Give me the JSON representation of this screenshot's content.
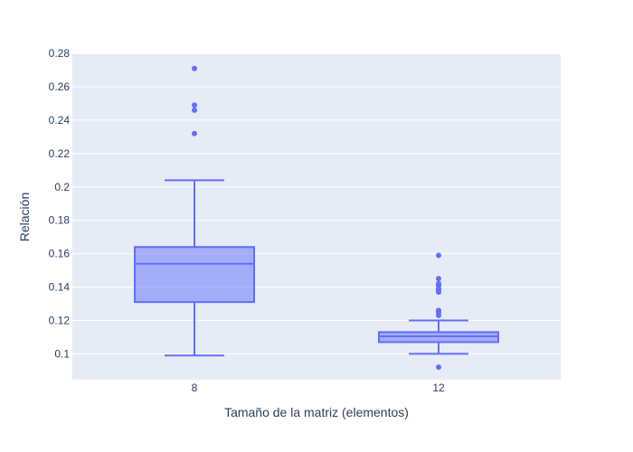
{
  "chart_data": {
    "type": "box",
    "title": "",
    "xlabel": "Tamaño de la matriz (elementos)",
    "ylabel": "Relación",
    "ylim": [
      0.0845,
      0.2795
    ],
    "yticks": [
      "0.1",
      "0.12",
      "0.14",
      "0.16",
      "0.18",
      "0.2",
      "0.22",
      "0.24",
      "0.26",
      "0.28"
    ],
    "ytick_values": [
      0.1,
      0.12,
      0.14,
      0.16,
      0.18,
      0.2,
      0.22,
      0.24,
      0.26,
      0.28
    ],
    "categories": [
      "8",
      "12"
    ],
    "grid": true,
    "colors": {
      "plot_bg": "#e5ecf6",
      "grid": "#ffffff",
      "box_line": "#636efa",
      "box_fill": "rgba(99,110,250,0.5)",
      "text": "#2a3f5f"
    },
    "boxes": [
      {
        "category": "8",
        "lowerfence": 0.099,
        "q1": 0.131,
        "median": 0.154,
        "q3": 0.164,
        "upperfence": 0.204,
        "outliers": [
          0.271,
          0.249,
          0.246,
          0.232
        ]
      },
      {
        "category": "12",
        "lowerfence": 0.1,
        "q1": 0.107,
        "median": 0.1105,
        "q3": 0.113,
        "upperfence": 0.12,
        "outliers": [
          0.092,
          0.123,
          0.125,
          0.126,
          0.137,
          0.138,
          0.139,
          0.141,
          0.142,
          0.145,
          0.159
        ]
      }
    ]
  }
}
